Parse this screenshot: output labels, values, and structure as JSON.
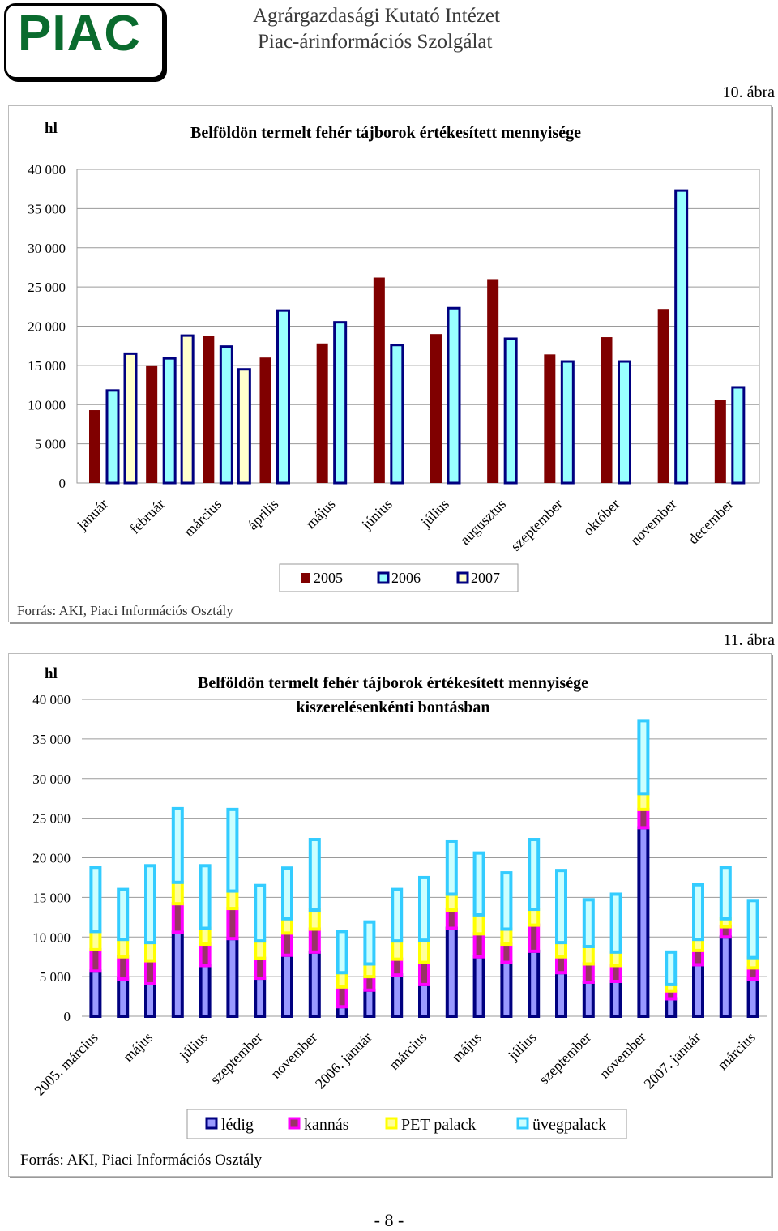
{
  "header": {
    "logo": "PIAC",
    "institute_line1": "Agrárgazdasági Kutató Intézet",
    "institute_line2": "Piac-árinformációs Szolgálat"
  },
  "colors": {
    "y2005": "#800000",
    "y2006": "#99ffff",
    "y2007": "#ffffcc",
    "bar_border": "#000080",
    "ledig": "#9999ff",
    "kannas": "#993366",
    "kannas_border": "#ff00ff",
    "pet_palack": "#ffff99",
    "pet_border": "#ffff00",
    "uvegpalack": "#ccffff",
    "uveg_border": "#33ccff"
  },
  "figure10": {
    "label": "10. ábra",
    "source": "Forrás: AKI, Piaci Információs Osztály",
    "chart_data": {
      "type": "bar",
      "title": "Belföldön termelt fehér tájborok értékesített mennyisége",
      "ylabel": "hl",
      "ylim": [
        0,
        40000
      ],
      "yticks": [
        "0",
        "5 000",
        "10 000",
        "15 000",
        "20 000",
        "25 000",
        "30 000",
        "35 000",
        "40 000"
      ],
      "categories": [
        "január",
        "február",
        "március",
        "április",
        "május",
        "június",
        "július",
        "augusztus",
        "szeptember",
        "október",
        "november",
        "december"
      ],
      "series": [
        {
          "name": "2005",
          "values": [
            9300,
            14900,
            18800,
            16000,
            17800,
            26200,
            19000,
            26000,
            16400,
            18600,
            22200,
            10600
          ]
        },
        {
          "name": "2006",
          "values": [
            11800,
            15900,
            17400,
            22000,
            20500,
            17600,
            22300,
            18400,
            15500,
            15500,
            37300,
            12200
          ]
        },
        {
          "name": "2007",
          "values": [
            16500,
            18800,
            14500,
            null,
            null,
            null,
            null,
            null,
            null,
            null,
            null,
            null
          ]
        }
      ],
      "legend_position": "bottom"
    }
  },
  "figure11": {
    "label": "11. ábra",
    "source": "Forrás: AKI, Piaci Információs Osztály",
    "chart_data": {
      "type": "bar",
      "stacked": true,
      "title": "Belföldön termelt fehér tájborok értékesített mennyisége",
      "subtitle": "kiszerelésenkénti bontásban",
      "ylabel": "hl",
      "ylim": [
        0,
        40000
      ],
      "yticks": [
        "0",
        "5 000",
        "10 000",
        "15 000",
        "20 000",
        "25 000",
        "30 000",
        "35 000",
        "40 000"
      ],
      "tick_labels": [
        "2005. március",
        "május",
        "július",
        "szeptember",
        "november",
        "2006. január",
        "március",
        "május",
        "július",
        "szeptember",
        "november",
        "2007. január",
        "március"
      ],
      "series": [
        {
          "name": "lédig",
          "values": [
            5700,
            4700,
            4100,
            10600,
            6400,
            9800,
            4800,
            7700,
            8100,
            1200,
            3300,
            5200,
            4000,
            11100,
            7500,
            6800,
            8200,
            5500,
            4300,
            4400,
            23800,
            2200,
            6500,
            10000,
            4700
          ]
        },
        {
          "name": "kannás",
          "values": [
            2700,
            2800,
            2900,
            3600,
            2700,
            3800,
            2500,
            2800,
            2900,
            2500,
            1700,
            2000,
            2800,
            2300,
            2900,
            2300,
            3300,
            2000,
            2300,
            2000,
            2300,
            1000,
            1800,
            1300,
            1400
          ]
        },
        {
          "name": "PET palack",
          "values": [
            2300,
            2200,
            2300,
            2700,
            2000,
            2200,
            2200,
            1800,
            2400,
            1800,
            1600,
            2300,
            2800,
            2000,
            2400,
            1900,
            2000,
            1800,
            2200,
            1700,
            2000,
            800,
            1400,
            1000,
            1300
          ]
        },
        {
          "name": "üvegpalack",
          "values": [
            8100,
            6300,
            9700,
            9300,
            7900,
            10300,
            7000,
            6400,
            8900,
            5200,
            5300,
            6500,
            7900,
            6700,
            7800,
            7100,
            8800,
            9100,
            5900,
            7300,
            9200,
            4100,
            6900,
            6500,
            7200
          ]
        }
      ],
      "legend_position": "bottom"
    }
  },
  "footer": {
    "page": "- 8 -"
  }
}
